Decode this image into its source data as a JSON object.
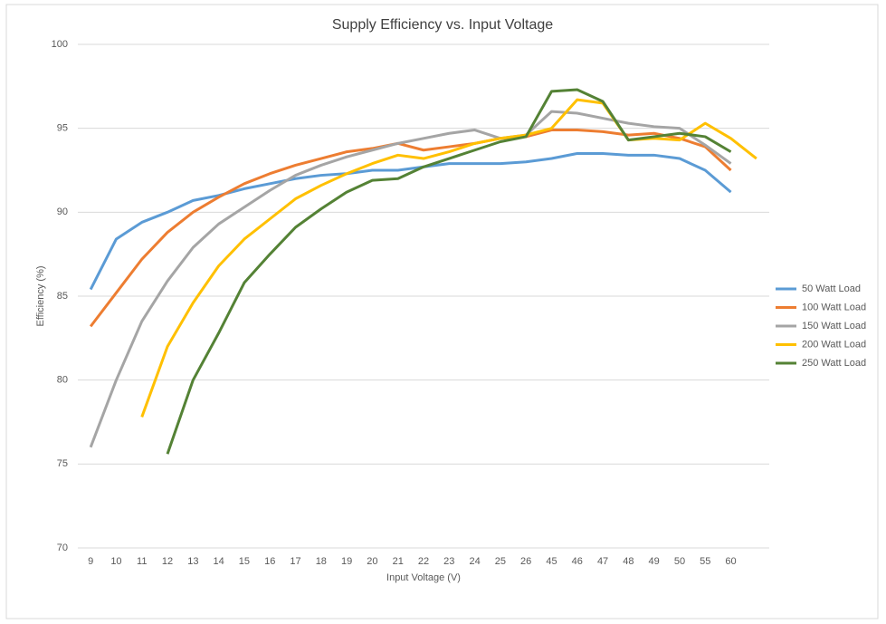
{
  "chart_data": {
    "type": "line",
    "title": "Supply Efficiency vs. Input Voltage",
    "x_label": "Input Voltage (V)",
    "y_label": "Efficiency (%)",
    "categories": [
      "9",
      "10",
      "11",
      "12",
      "13",
      "14",
      "15",
      "16",
      "17",
      "18",
      "19",
      "20",
      "21",
      "22",
      "23",
      "24",
      "25",
      "26",
      "45",
      "46",
      "47",
      "48",
      "49",
      "50",
      "55",
      "60",
      null
    ],
    "series": [
      {
        "name": "50 Watt Load",
        "color": "#5b9bd5",
        "values": [
          85.4,
          88.4,
          89.4,
          90.0,
          90.7,
          91.0,
          91.4,
          91.7,
          92.0,
          92.2,
          92.3,
          92.5,
          92.5,
          92.7,
          92.9,
          92.9,
          92.9,
          93.0,
          93.2,
          93.5,
          93.5,
          93.4,
          93.4,
          93.2,
          92.5,
          91.2,
          null
        ]
      },
      {
        "name": "100 Watt Load",
        "color": "#ed7d31",
        "values": [
          83.2,
          85.2,
          87.2,
          88.8,
          90.0,
          90.9,
          91.7,
          92.3,
          92.8,
          93.2,
          93.6,
          93.8,
          94.1,
          93.7,
          93.9,
          94.1,
          94.4,
          94.5,
          94.9,
          94.9,
          94.8,
          94.6,
          94.7,
          94.4,
          93.9,
          92.5,
          null
        ]
      },
      {
        "name": "150 Watt Load",
        "color": "#a5a5a5",
        "values": [
          76.0,
          80.0,
          83.5,
          85.9,
          87.9,
          89.3,
          90.3,
          91.3,
          92.2,
          92.8,
          93.3,
          93.7,
          94.1,
          94.4,
          94.7,
          94.9,
          94.4,
          94.6,
          96.0,
          95.9,
          95.6,
          95.3,
          95.1,
          95.0,
          94.0,
          92.9,
          null
        ]
      },
      {
        "name": "200 Watt Load",
        "color": "#ffc000",
        "values": [
          null,
          null,
          77.8,
          82.0,
          84.6,
          86.8,
          88.4,
          89.6,
          90.8,
          91.6,
          92.3,
          92.9,
          93.4,
          93.2,
          93.6,
          94.1,
          94.4,
          94.6,
          95.0,
          96.7,
          96.5,
          94.3,
          94.4,
          94.3,
          95.3,
          94.4,
          93.2
        ]
      },
      {
        "name": "250 Watt Load",
        "color": "#548235",
        "values": [
          null,
          null,
          null,
          75.6,
          80.0,
          82.8,
          85.8,
          87.5,
          89.1,
          90.2,
          91.2,
          91.9,
          92.0,
          92.7,
          93.2,
          93.7,
          94.2,
          94.5,
          97.2,
          97.3,
          96.6,
          94.3,
          94.5,
          94.7,
          94.5,
          93.6,
          null
        ]
      }
    ],
    "ylim": [
      70,
      100
    ],
    "yticks": [
      70,
      75,
      80,
      85,
      90,
      95,
      100
    ],
    "grid": true,
    "legend": "right"
  }
}
